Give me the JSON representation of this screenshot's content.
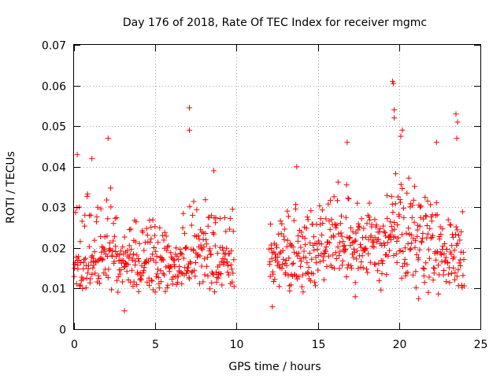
{
  "chart_data": {
    "type": "scatter",
    "title": "Day 176 of 2018, Rate Of TEC Index for receiver mgmc",
    "xlabel": "GPS time / hours",
    "ylabel": "ROTI / TECUs",
    "xlim": [
      0,
      25
    ],
    "ylim": [
      0,
      0.07
    ],
    "grid": true,
    "marker": "+",
    "x_ticks": [
      0,
      5,
      10,
      15,
      20,
      25
    ],
    "x_tick_labels": [
      "0",
      "5",
      "10",
      "15",
      "20",
      "25"
    ],
    "y_ticks": [
      0,
      0.01,
      0.02,
      0.03,
      0.04,
      0.05,
      0.06,
      0.07
    ],
    "y_tick_labels": [
      "0",
      "0.01",
      "0.02",
      "0.03",
      "0.04",
      "0.05",
      "0.06",
      "0.07"
    ],
    "colors": {
      "series": "#ff0000",
      "grid": "#a0a0a0",
      "axis": "#000000"
    },
    "series": [
      {
        "name": "ROTI",
        "segments": [
          {
            "x_start": 0.0,
            "x_end": 9.85,
            "step": 0.025
          },
          {
            "x_start": 12.0,
            "x_end": 24.0,
            "step": 0.025
          }
        ],
        "notable_points": [
          {
            "x": 0.2,
            "y": 0.043
          },
          {
            "x": 1.1,
            "y": 0.042
          },
          {
            "x": 2.1,
            "y": 0.047
          },
          {
            "x": 3.1,
            "y": 0.0045
          },
          {
            "x": 7.1,
            "y": 0.0545
          },
          {
            "x": 7.1,
            "y": 0.049
          },
          {
            "x": 8.6,
            "y": 0.039
          },
          {
            "x": 13.7,
            "y": 0.04
          },
          {
            "x": 16.8,
            "y": 0.046
          },
          {
            "x": 19.6,
            "y": 0.061
          },
          {
            "x": 19.65,
            "y": 0.0605
          },
          {
            "x": 19.7,
            "y": 0.054
          },
          {
            "x": 19.7,
            "y": 0.052
          },
          {
            "x": 20.2,
            "y": 0.049
          },
          {
            "x": 20.1,
            "y": 0.0475
          },
          {
            "x": 22.3,
            "y": 0.046
          },
          {
            "x": 23.5,
            "y": 0.053
          },
          {
            "x": 23.6,
            "y": 0.051
          },
          {
            "x": 23.55,
            "y": 0.047
          },
          {
            "x": 12.2,
            "y": 0.0055
          },
          {
            "x": 17.3,
            "y": 0.008
          },
          {
            "x": 21.2,
            "y": 0.0075
          }
        ],
        "envelope": [
          {
            "x": 0,
            "lo": 0.011,
            "mid": 0.017,
            "hi": 0.03
          },
          {
            "x": 1,
            "lo": 0.009,
            "mid": 0.016,
            "hi": 0.031
          },
          {
            "x": 2,
            "lo": 0.009,
            "mid": 0.016,
            "hi": 0.033
          },
          {
            "x": 3,
            "lo": 0.01,
            "mid": 0.016,
            "hi": 0.026
          },
          {
            "x": 4,
            "lo": 0.01,
            "mid": 0.015,
            "hi": 0.024
          },
          {
            "x": 5,
            "lo": 0.008,
            "mid": 0.014,
            "hi": 0.026
          },
          {
            "x": 6,
            "lo": 0.01,
            "mid": 0.015,
            "hi": 0.022
          },
          {
            "x": 7,
            "lo": 0.01,
            "mid": 0.016,
            "hi": 0.03
          },
          {
            "x": 8,
            "lo": 0.01,
            "mid": 0.018,
            "hi": 0.03
          },
          {
            "x": 9,
            "lo": 0.01,
            "mid": 0.016,
            "hi": 0.028
          },
          {
            "x": 12,
            "lo": 0.01,
            "mid": 0.016,
            "hi": 0.025
          },
          {
            "x": 13,
            "lo": 0.009,
            "mid": 0.018,
            "hi": 0.03
          },
          {
            "x": 14,
            "lo": 0.009,
            "mid": 0.018,
            "hi": 0.031
          },
          {
            "x": 15,
            "lo": 0.01,
            "mid": 0.018,
            "hi": 0.03
          },
          {
            "x": 16,
            "lo": 0.012,
            "mid": 0.021,
            "hi": 0.035
          },
          {
            "x": 17,
            "lo": 0.011,
            "mid": 0.019,
            "hi": 0.032
          },
          {
            "x": 18,
            "lo": 0.011,
            "mid": 0.02,
            "hi": 0.03
          },
          {
            "x": 19,
            "lo": 0.011,
            "mid": 0.019,
            "hi": 0.03
          },
          {
            "x": 20,
            "lo": 0.013,
            "mid": 0.023,
            "hi": 0.037
          },
          {
            "x": 21,
            "lo": 0.01,
            "mid": 0.019,
            "hi": 0.032
          },
          {
            "x": 22,
            "lo": 0.01,
            "mid": 0.017,
            "hi": 0.029
          },
          {
            "x": 23,
            "lo": 0.009,
            "mid": 0.017,
            "hi": 0.028
          },
          {
            "x": 24,
            "lo": 0.01,
            "mid": 0.018,
            "hi": 0.028
          }
        ]
      }
    ]
  }
}
